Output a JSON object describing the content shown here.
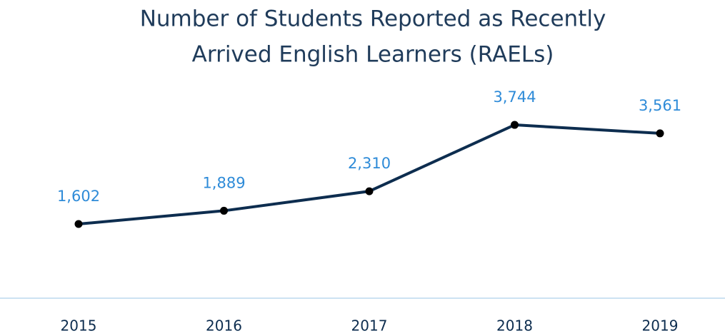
{
  "chart_data": {
    "type": "line",
    "title": [
      "Number of Students Reported as Recently",
      "Arrived English Learners (RAELs)"
    ],
    "categories": [
      "2015",
      "2016",
      "2017",
      "2018",
      "2019"
    ],
    "series": [
      {
        "color": "#0d2d4f",
        "values": [
          1602,
          1889,
          2310,
          3744,
          3561
        ],
        "value_labels": [
          "1,602",
          "1,889",
          "2,310",
          "3,744",
          "3,561"
        ],
        "label_color": "#2e8bd8"
      }
    ],
    "ylim": [
      0,
      4500
    ]
  }
}
